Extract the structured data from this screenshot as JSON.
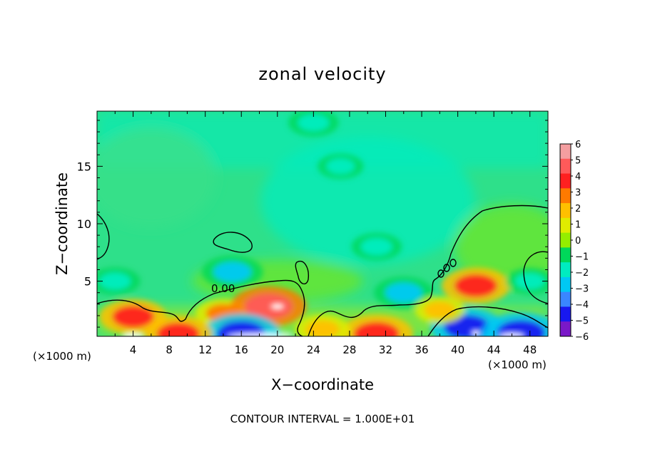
{
  "chart_data": {
    "type": "heatmap",
    "title": "zonal velocity",
    "xlabel": "X−coordinate",
    "ylabel": "Z−coordinate",
    "x_unit": "(×1000 m)",
    "x_unit_right": "(×1000 m)",
    "xlim": [
      0,
      50
    ],
    "ylim": [
      0.2,
      19.8
    ],
    "x_ticks": [
      4,
      8,
      12,
      16,
      20,
      24,
      28,
      32,
      36,
      40,
      44,
      48
    ],
    "x_tick_labels": [
      "4",
      "8",
      "12",
      "16",
      "20",
      "24",
      "28",
      "32",
      "36",
      "40",
      "44",
      "48"
    ],
    "y_ticks": [
      5,
      10,
      15
    ],
    "y_tick_labels": [
      "5",
      "10",
      "15"
    ],
    "colorbar": {
      "min": -6,
      "max": 6,
      "labels": [
        "6",
        "5",
        "4",
        "3",
        "2",
        "1",
        "0",
        "−1",
        "−2",
        "−3",
        "−4",
        "−5",
        "−6"
      ],
      "colors": [
        "#f49ea0",
        "#ff5a5a",
        "#ff2020",
        "#ff7a00",
        "#ffc000",
        "#e0ec00",
        "#94ee00",
        "#00d85a",
        "#00ecc0",
        "#00c8f4",
        "#3a86ff",
        "#1818f0",
        "#7a18c8"
      ]
    },
    "contour_label": "0.00",
    "footer": "CONTOUR INTERVAL = 1.000E+01",
    "field_features": [
      {
        "x": 4,
        "z": 1.9,
        "value": 3.8
      },
      {
        "x": 14,
        "z": 2.2,
        "value": 2.6
      },
      {
        "x": 19,
        "z": 2.8,
        "value": 4.8
      },
      {
        "x": 15,
        "z": 5.8,
        "value": -3.2
      },
      {
        "x": 2,
        "z": 5.0,
        "value": -2.0
      },
      {
        "x": 34,
        "z": 4.0,
        "value": -3.0
      },
      {
        "x": 42,
        "z": 4.6,
        "value": 4.0
      },
      {
        "x": 31,
        "z": 8.0,
        "value": -2.0
      },
      {
        "x": 27,
        "z": 15.0,
        "value": -1.5
      },
      {
        "x": 24,
        "z": 18.8,
        "value": -2.0
      },
      {
        "x": 48,
        "z": 5.0,
        "value": -1.8
      },
      {
        "x": 16,
        "z": 0.4,
        "value": -5.0
      },
      {
        "x": 41,
        "z": 1.0,
        "value": -4.5
      },
      {
        "x": 47,
        "z": 0.5,
        "value": -5.0
      },
      {
        "x": 31,
        "z": 0.4,
        "value": 4.5
      },
      {
        "x": 9,
        "z": 0.4,
        "value": 4.0
      },
      {
        "x": 25,
        "z": 0.8,
        "value": 2.5
      },
      {
        "x": 38,
        "z": 2.5,
        "value": 2.0
      }
    ]
  }
}
